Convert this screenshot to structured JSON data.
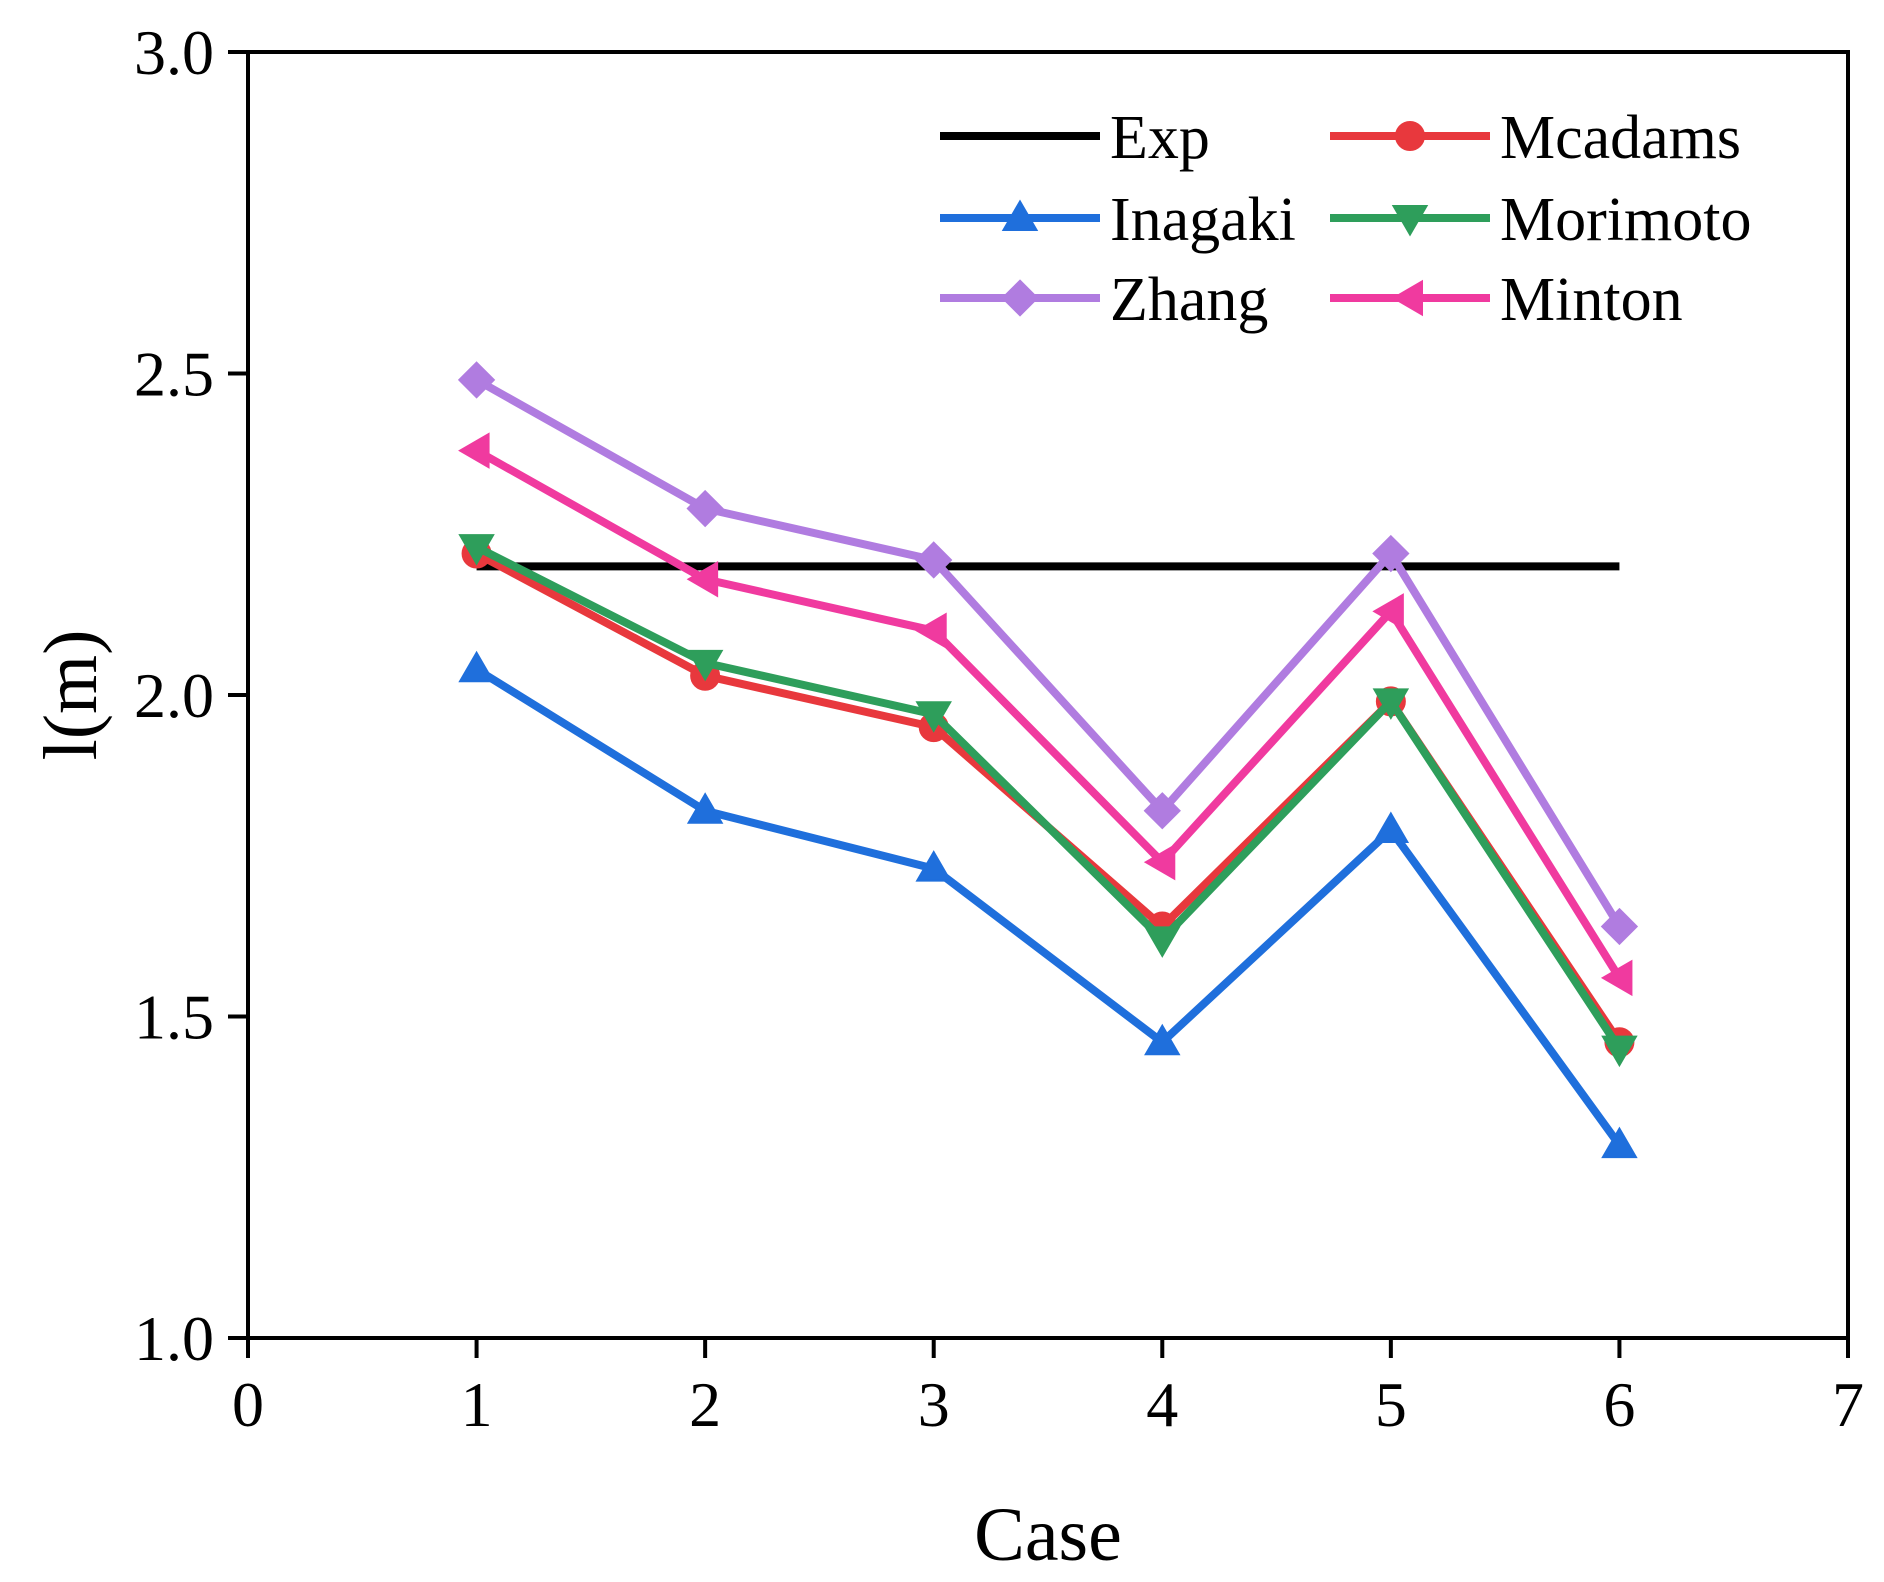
{
  "chart_data": {
    "type": "line",
    "title": "",
    "xlabel": "Case",
    "ylabel": "l(m)",
    "xlim": [
      0,
      7
    ],
    "ylim": [
      1.0,
      3.0
    ],
    "xticks": [
      0,
      1,
      2,
      3,
      4,
      5,
      6,
      7
    ],
    "yticks": [
      1.0,
      1.5,
      2.0,
      2.5,
      3.0
    ],
    "xtick_labels": [
      "0",
      "1",
      "2",
      "3",
      "4",
      "5",
      "6",
      "7"
    ],
    "ytick_labels": [
      "1.0",
      "1.5",
      "2.0",
      "2.5",
      "3.0"
    ],
    "grid": false,
    "legend_position": "top-right",
    "x": [
      1,
      2,
      3,
      4,
      5,
      6
    ],
    "series": [
      {
        "name": "Exp",
        "color": "#000000",
        "marker": "none",
        "values": [
          2.2,
          2.2,
          2.2,
          2.2,
          2.2,
          2.2
        ]
      },
      {
        "name": "Mcadams",
        "color": "#e8383d",
        "marker": "circle",
        "values": [
          2.22,
          2.03,
          1.95,
          1.64,
          1.99,
          1.46
        ]
      },
      {
        "name": "Inagaki",
        "color": "#1f6fdc",
        "marker": "triangle-up",
        "values": [
          2.04,
          1.82,
          1.73,
          1.46,
          1.79,
          1.3
        ]
      },
      {
        "name": "Morimoto",
        "color": "#2e9e5b",
        "marker": "triangle-down",
        "values": [
          2.23,
          2.05,
          1.97,
          1.62,
          1.99,
          1.45
        ]
      },
      {
        "name": "Zhang",
        "color": "#b07ce0",
        "marker": "diamond",
        "values": [
          2.49,
          2.29,
          2.21,
          1.82,
          2.22,
          1.64
        ]
      },
      {
        "name": "Minton",
        "color": "#f03a9f",
        "marker": "triangle-left",
        "values": [
          2.38,
          2.18,
          2.1,
          1.74,
          2.13,
          1.56
        ]
      }
    ]
  }
}
